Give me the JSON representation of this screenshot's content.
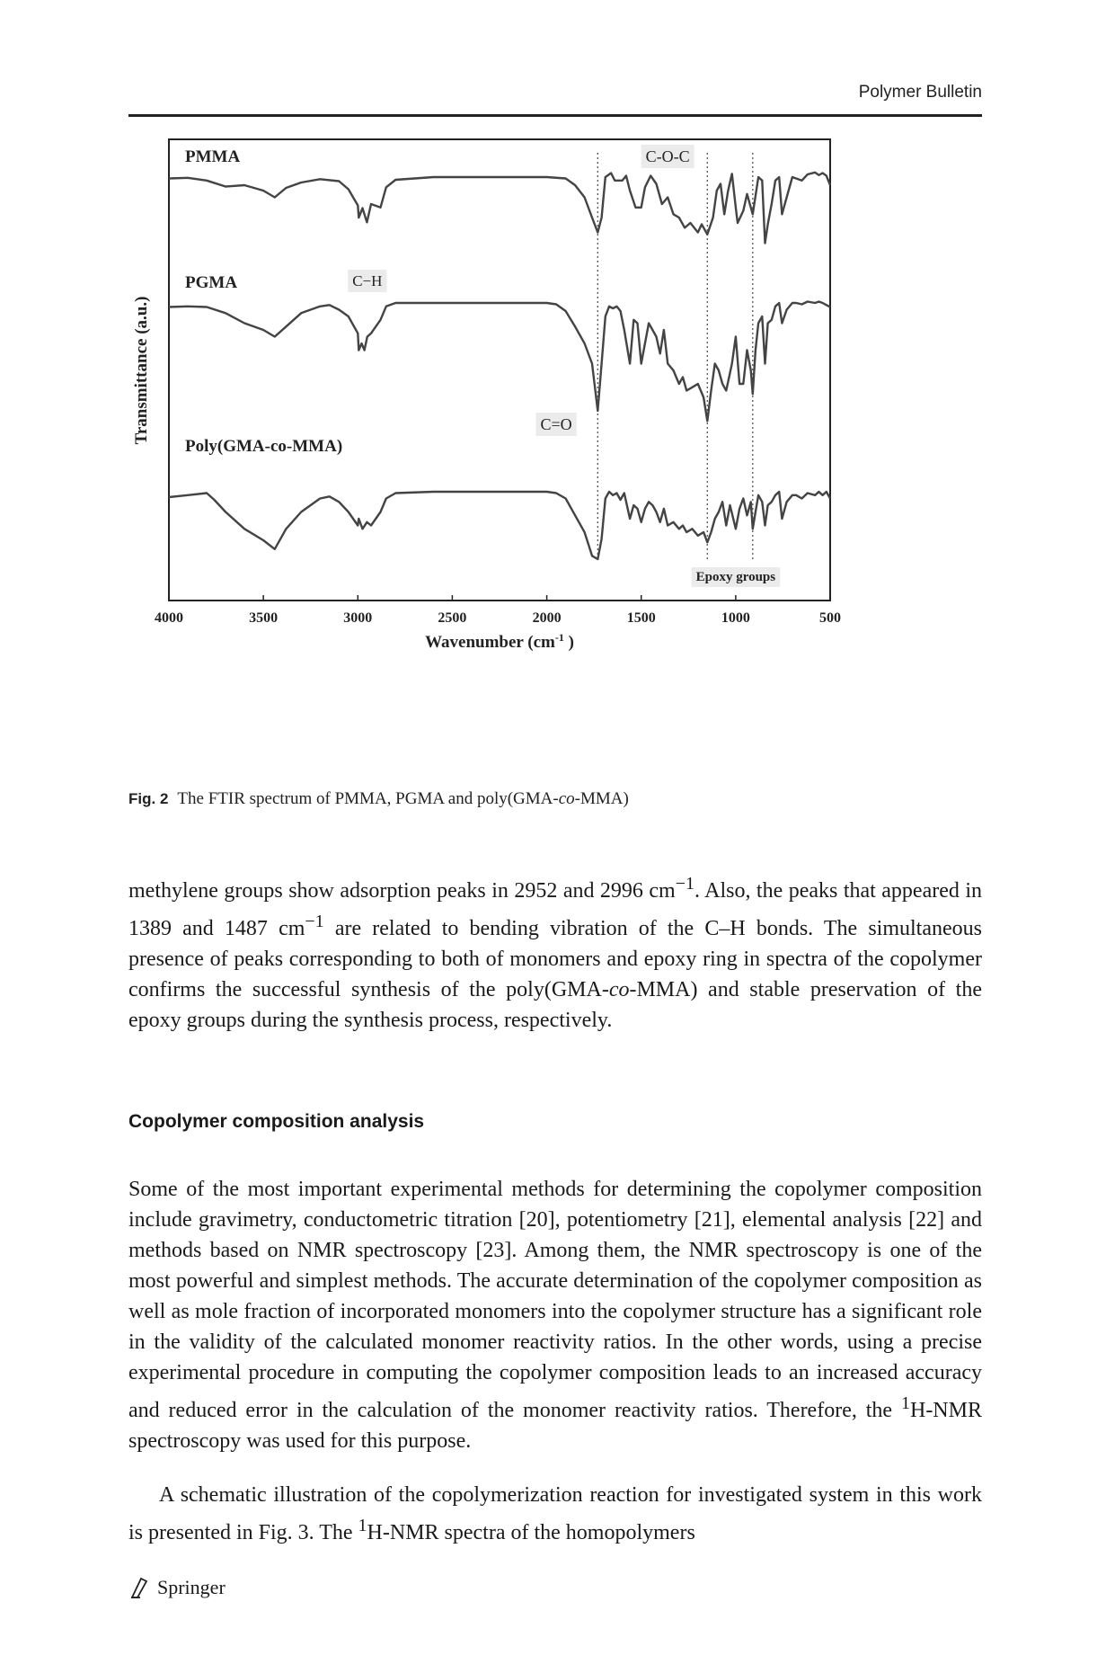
{
  "header": {
    "journal": "Polymer Bulletin"
  },
  "figure": {
    "label": "Fig. 2",
    "caption_before": "The FTIR spectrum of PMMA, PGMA and poly(GMA-",
    "caption_italic": "co",
    "caption_after": "-MMA)"
  },
  "chart_data": {
    "type": "line",
    "ylabel": "Transmittance  (a.u.)",
    "xlabel_main": "Wavenumber  (cm",
    "xlabel_sup": "-1",
    "xlabel_end": " )",
    "xlim": [
      4000,
      500
    ],
    "x_ticks": [
      "4000",
      "3500",
      "3000",
      "2500",
      "2000",
      "1500",
      "1000",
      "500"
    ],
    "x_tick_values": [
      4000,
      3500,
      3000,
      2500,
      2000,
      1500,
      1000,
      500
    ],
    "annotations": {
      "c_o_c": "C-O-C",
      "c_h": "C−H",
      "c_o": "C=O",
      "epoxy": "Epoxy groups"
    },
    "marker_lines": [
      1730,
      1150,
      910
    ],
    "series": [
      {
        "name": "PMMA",
        "offset": 0,
        "points": [
          [
            4000,
            0.02
          ],
          [
            3900,
            0.01
          ],
          [
            3800,
            0.05
          ],
          [
            3700,
            0.14
          ],
          [
            3600,
            0.12
          ],
          [
            3500,
            0.2
          ],
          [
            3440,
            0.3
          ],
          [
            3380,
            0.16
          ],
          [
            3300,
            0.08
          ],
          [
            3200,
            0.03
          ],
          [
            3100,
            0.06
          ],
          [
            3050,
            0.18
          ],
          [
            3000,
            0.42
          ],
          [
            2995,
            0.6
          ],
          [
            2975,
            0.46
          ],
          [
            2952,
            0.67
          ],
          [
            2930,
            0.4
          ],
          [
            2880,
            0.45
          ],
          [
            2850,
            0.15
          ],
          [
            2800,
            0.04
          ],
          [
            2600,
            0.0
          ],
          [
            2200,
            0.0
          ],
          [
            2000,
            0.0
          ],
          [
            1900,
            0.02
          ],
          [
            1850,
            0.12
          ],
          [
            1800,
            0.3
          ],
          [
            1760,
            0.6
          ],
          [
            1730,
            0.82
          ],
          [
            1710,
            0.6
          ],
          [
            1690,
            0.0
          ],
          [
            1660,
            -0.06
          ],
          [
            1640,
            0.05
          ],
          [
            1600,
            0.05
          ],
          [
            1580,
            -0.02
          ],
          [
            1560,
            0.2
          ],
          [
            1530,
            0.45
          ],
          [
            1500,
            0.45
          ],
          [
            1480,
            0.15
          ],
          [
            1450,
            -0.02
          ],
          [
            1420,
            0.1
          ],
          [
            1390,
            0.4
          ],
          [
            1360,
            0.3
          ],
          [
            1330,
            0.55
          ],
          [
            1300,
            0.6
          ],
          [
            1270,
            0.75
          ],
          [
            1240,
            0.68
          ],
          [
            1200,
            0.82
          ],
          [
            1180,
            0.7
          ],
          [
            1150,
            0.85
          ],
          [
            1120,
            0.6
          ],
          [
            1100,
            0.2
          ],
          [
            1080,
            0.1
          ],
          [
            1060,
            0.55
          ],
          [
            1040,
            0.2
          ],
          [
            1020,
            -0.05
          ],
          [
            1000,
            0.45
          ],
          [
            990,
            0.68
          ],
          [
            960,
            0.5
          ],
          [
            940,
            0.25
          ],
          [
            910,
            0.55
          ],
          [
            880,
            0.0
          ],
          [
            860,
            0.05
          ],
          [
            845,
            0.98
          ],
          [
            830,
            0.7
          ],
          [
            810,
            0.4
          ],
          [
            790,
            0.05
          ],
          [
            770,
            0.0
          ],
          [
            755,
            0.55
          ],
          [
            730,
            0.3
          ],
          [
            700,
            0.0
          ],
          [
            680,
            0.02
          ],
          [
            650,
            0.05
          ],
          [
            620,
            -0.04
          ],
          [
            580,
            -0.07
          ],
          [
            560,
            -0.03
          ],
          [
            540,
            -0.06
          ],
          [
            520,
            -0.02
          ],
          [
            500,
            0.12
          ]
        ]
      },
      {
        "name": "PGMA",
        "offset": 140,
        "points": [
          [
            4000,
            0.06
          ],
          [
            3900,
            0.05
          ],
          [
            3800,
            0.06
          ],
          [
            3700,
            0.15
          ],
          [
            3600,
            0.3
          ],
          [
            3500,
            0.4
          ],
          [
            3440,
            0.5
          ],
          [
            3380,
            0.35
          ],
          [
            3300,
            0.15
          ],
          [
            3200,
            0.05
          ],
          [
            3150,
            0.03
          ],
          [
            3100,
            0.1
          ],
          [
            3050,
            0.2
          ],
          [
            3000,
            0.45
          ],
          [
            2995,
            0.7
          ],
          [
            2980,
            0.6
          ],
          [
            2965,
            0.7
          ],
          [
            2950,
            0.5
          ],
          [
            2930,
            0.45
          ],
          [
            2880,
            0.25
          ],
          [
            2850,
            0.05
          ],
          [
            2800,
            0.0
          ],
          [
            2600,
            0.0
          ],
          [
            2200,
            0.0
          ],
          [
            2000,
            0.0
          ],
          [
            1950,
            0.02
          ],
          [
            1900,
            0.12
          ],
          [
            1850,
            0.35
          ],
          [
            1800,
            0.6
          ],
          [
            1760,
            0.9
          ],
          [
            1730,
            1.6
          ],
          [
            1710,
            0.9
          ],
          [
            1690,
            0.2
          ],
          [
            1670,
            0.05
          ],
          [
            1650,
            0.08
          ],
          [
            1630,
            0.05
          ],
          [
            1610,
            0.12
          ],
          [
            1590,
            0.4
          ],
          [
            1560,
            0.9
          ],
          [
            1540,
            0.25
          ],
          [
            1520,
            0.3
          ],
          [
            1500,
            0.9
          ],
          [
            1480,
            0.6
          ],
          [
            1460,
            0.3
          ],
          [
            1440,
            0.4
          ],
          [
            1420,
            0.5
          ],
          [
            1400,
            0.75
          ],
          [
            1380,
            0.4
          ],
          [
            1360,
            0.9
          ],
          [
            1330,
            1.0
          ],
          [
            1300,
            1.2
          ],
          [
            1280,
            1.1
          ],
          [
            1260,
            1.3
          ],
          [
            1230,
            1.25
          ],
          [
            1200,
            1.2
          ],
          [
            1170,
            1.4
          ],
          [
            1150,
            1.75
          ],
          [
            1130,
            1.3
          ],
          [
            1110,
            0.9
          ],
          [
            1090,
            1.0
          ],
          [
            1070,
            1.2
          ],
          [
            1050,
            1.3
          ],
          [
            1020,
            0.9
          ],
          [
            1000,
            0.5
          ],
          [
            980,
            1.2
          ],
          [
            960,
            1.2
          ],
          [
            940,
            0.7
          ],
          [
            920,
            1.0
          ],
          [
            910,
            1.35
          ],
          [
            895,
            0.7
          ],
          [
            880,
            0.3
          ],
          [
            860,
            0.2
          ],
          [
            845,
            0.9
          ],
          [
            830,
            0.3
          ],
          [
            810,
            0.25
          ],
          [
            790,
            0.05
          ],
          [
            770,
            0.0
          ],
          [
            755,
            0.3
          ],
          [
            730,
            0.1
          ],
          [
            700,
            0.0
          ],
          [
            680,
            0.0
          ],
          [
            650,
            0.02
          ],
          [
            620,
            -0.02
          ],
          [
            580,
            0.0
          ],
          [
            560,
            -0.02
          ],
          [
            540,
            0.0
          ],
          [
            520,
            0.03
          ],
          [
            500,
            0.06
          ]
        ]
      },
      {
        "name": "Poly(GMA-co-MMA)",
        "offset": 350,
        "points": [
          [
            4000,
            0.08
          ],
          [
            3900,
            0.05
          ],
          [
            3800,
            0.02
          ],
          [
            3760,
            0.12
          ],
          [
            3700,
            0.3
          ],
          [
            3600,
            0.55
          ],
          [
            3500,
            0.72
          ],
          [
            3440,
            0.85
          ],
          [
            3380,
            0.55
          ],
          [
            3300,
            0.3
          ],
          [
            3200,
            0.1
          ],
          [
            3150,
            0.07
          ],
          [
            3100,
            0.15
          ],
          [
            3050,
            0.3
          ],
          [
            3000,
            0.5
          ],
          [
            2995,
            0.4
          ],
          [
            2975,
            0.55
          ],
          [
            2952,
            0.45
          ],
          [
            2930,
            0.5
          ],
          [
            2880,
            0.3
          ],
          [
            2850,
            0.1
          ],
          [
            2800,
            0.02
          ],
          [
            2600,
            0.0
          ],
          [
            2200,
            0.0
          ],
          [
            2000,
            0.0
          ],
          [
            1950,
            0.02
          ],
          [
            1900,
            0.1
          ],
          [
            1850,
            0.35
          ],
          [
            1800,
            0.6
          ],
          [
            1760,
            0.95
          ],
          [
            1730,
            1.0
          ],
          [
            1710,
            0.7
          ],
          [
            1690,
            0.1
          ],
          [
            1670,
            0.0
          ],
          [
            1650,
            0.05
          ],
          [
            1630,
            0.02
          ],
          [
            1610,
            0.12
          ],
          [
            1590,
            0.02
          ],
          [
            1560,
            0.4
          ],
          [
            1540,
            0.2
          ],
          [
            1520,
            0.25
          ],
          [
            1500,
            0.45
          ],
          [
            1480,
            0.25
          ],
          [
            1460,
            0.15
          ],
          [
            1440,
            0.2
          ],
          [
            1420,
            0.3
          ],
          [
            1400,
            0.45
          ],
          [
            1380,
            0.25
          ],
          [
            1360,
            0.5
          ],
          [
            1330,
            0.45
          ],
          [
            1300,
            0.55
          ],
          [
            1280,
            0.5
          ],
          [
            1260,
            0.6
          ],
          [
            1230,
            0.55
          ],
          [
            1200,
            0.65
          ],
          [
            1170,
            0.6
          ],
          [
            1150,
            0.75
          ],
          [
            1130,
            0.6
          ],
          [
            1110,
            0.4
          ],
          [
            1090,
            0.3
          ],
          [
            1070,
            0.15
          ],
          [
            1050,
            0.5
          ],
          [
            1030,
            0.2
          ],
          [
            1000,
            0.55
          ],
          [
            980,
            0.25
          ],
          [
            960,
            0.1
          ],
          [
            940,
            0.35
          ],
          [
            920,
            0.15
          ],
          [
            910,
            0.55
          ],
          [
            895,
            0.3
          ],
          [
            880,
            0.05
          ],
          [
            860,
            0.15
          ],
          [
            845,
            0.5
          ],
          [
            830,
            0.2
          ],
          [
            810,
            0.15
          ],
          [
            790,
            0.05
          ],
          [
            770,
            0.0
          ],
          [
            755,
            0.4
          ],
          [
            730,
            0.15
          ],
          [
            700,
            0.05
          ],
          [
            680,
            0.05
          ],
          [
            650,
            0.1
          ],
          [
            620,
            0.02
          ],
          [
            580,
            0.05
          ],
          [
            560,
            0.0
          ],
          [
            540,
            0.05
          ],
          [
            520,
            0.0
          ],
          [
            500,
            0.1
          ]
        ]
      }
    ]
  },
  "body": {
    "p1": "methylene groups show adsorption peaks in 2952 and 2996 cm−1. Also, the peaks that appeared in 1389 and 1487 cm−1 are related to bending vibration of the C–H bonds. The simultaneous presence of peaks corresponding to both of monomers and epoxy ring in spectra of the copolymer confirms the successful synthesis of the poly(GMA-co-MMA) and stable preservation of the epoxy groups during the synthesis process, respectively.",
    "heading": "Copolymer composition analysis",
    "p2": "Some of the most important experimental methods for determining the copolymer composition include gravimetry, conductometric titration [20], potentiometry [21], elemental analysis [22] and methods based on NMR spectroscopy [23]. Among them, the NMR spectroscopy is one of the most powerful and simplest methods. The accurate determination of the copolymer composition as well as mole fraction of incorporated monomers into the copolymer structure has a significant role in the validity of the calculated monomer reactivity ratios. In the other words, using a precise experimental procedure in computing the copolymer composition leads to an increased accuracy and reduced error in the calculation of the monomer reactivity ratios. Therefore, the 1H-NMR spectroscopy was used for this purpose.",
    "p3": "A schematic illustration of the copolymerization reaction for investigated system in this work is presented in Fig. 3. The 1H-NMR spectra of the homopolymers"
  },
  "footer": {
    "publisher": "Springer"
  }
}
